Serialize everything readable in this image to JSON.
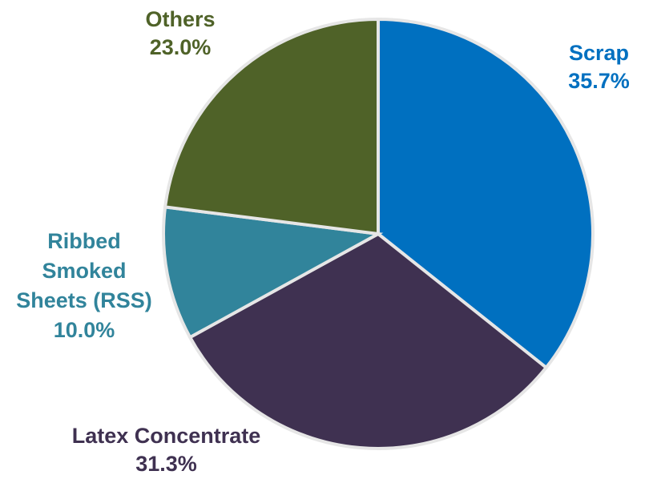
{
  "chart_data": {
    "type": "pie",
    "start_angle_deg": 0,
    "direction": "clockwise",
    "slices": [
      {
        "label_lines": [
          "Scrap"
        ],
        "value_text": "35.7%",
        "value": 35.7,
        "color": "#0070C0"
      },
      {
        "label_lines": [
          "Latex Concentrate"
        ],
        "value_text": "31.3%",
        "value": 31.3,
        "color": "#3F3151"
      },
      {
        "label_lines": [
          "Ribbed",
          "Smoked",
          "Sheets (RSS)"
        ],
        "value_text": "10.0%",
        "value": 10.0,
        "color": "#31849B"
      },
      {
        "label_lines": [
          "Others"
        ],
        "value_text": "23.0%",
        "value": 23.0,
        "color": "#4F6228"
      }
    ],
    "legend": "none"
  }
}
